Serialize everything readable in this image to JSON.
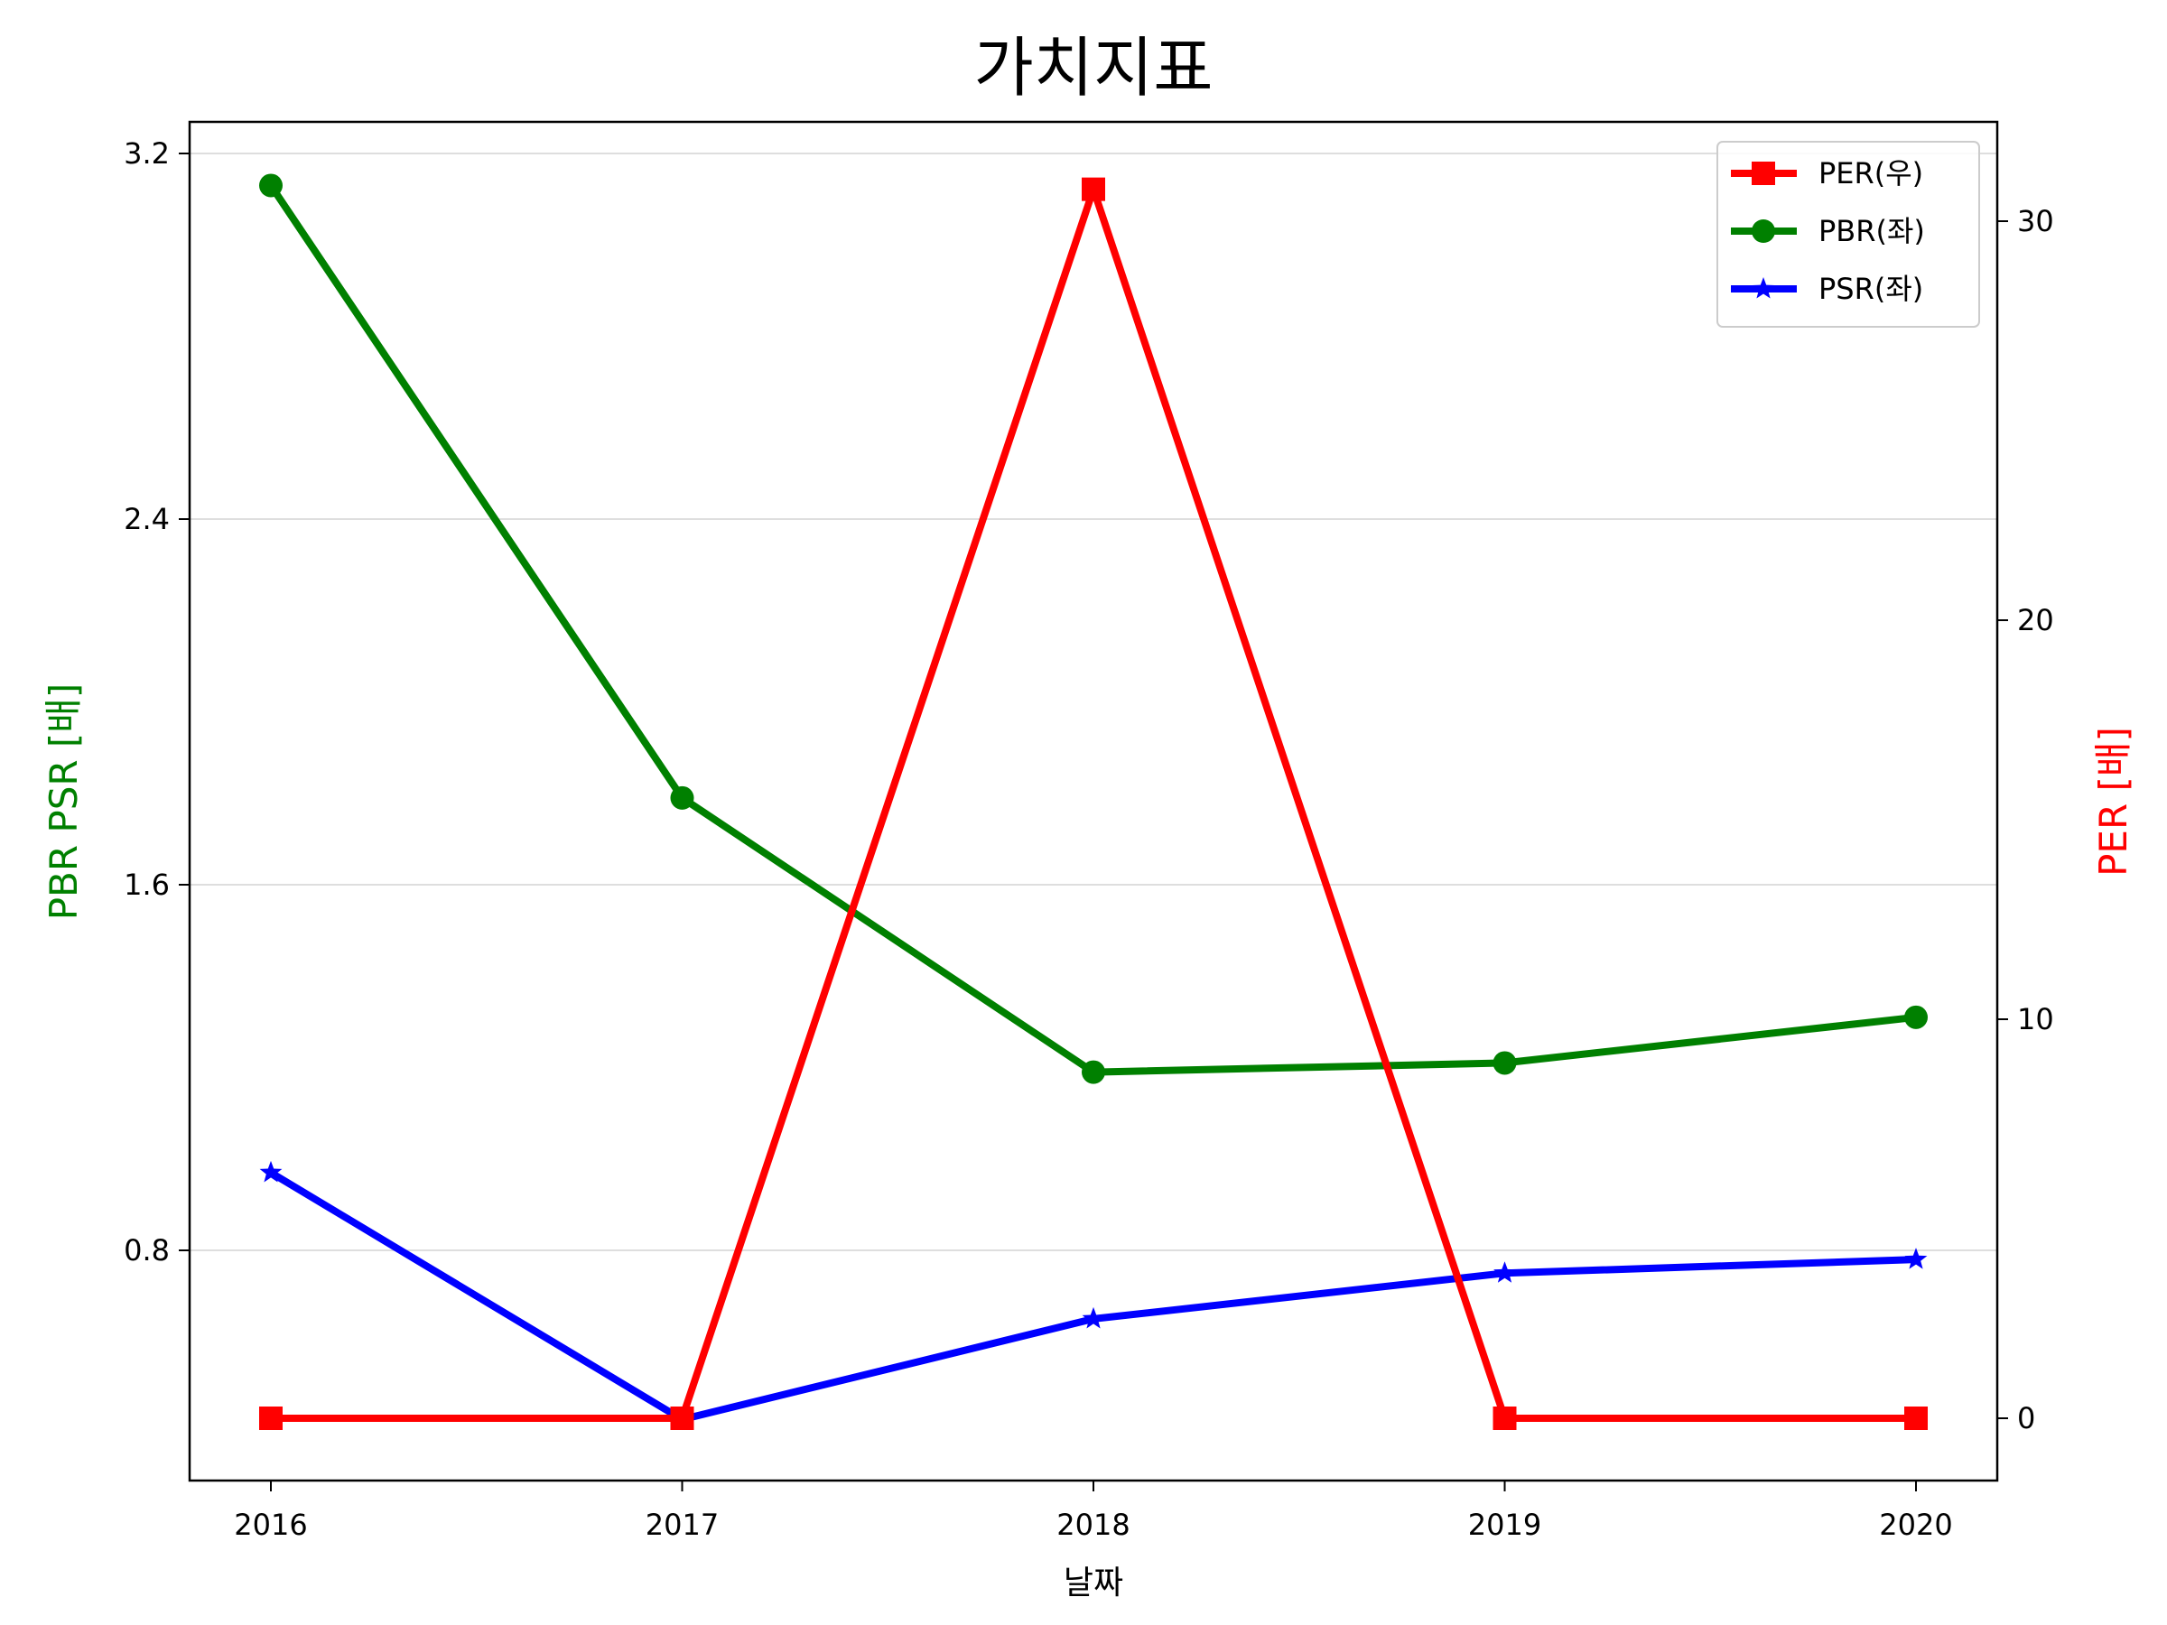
{
  "chart_data": {
    "type": "line",
    "title": "가치지표",
    "xlabel": "날짜",
    "ylabel_left": "PBR PSR [배]",
    "ylabel_right": "PER [배]",
    "categories": [
      "2016",
      "2017",
      "2018",
      "2019",
      "2020"
    ],
    "left_axis": {
      "ticks": [
        "0.8",
        "1.6",
        "2.4",
        "3.2"
      ],
      "ylim": [
        0.3,
        3.2
      ]
    },
    "right_axis": {
      "ticks": [
        "0",
        "10",
        "20",
        "30"
      ],
      "ylim": [
        -1.6,
        32.3
      ]
    },
    "series": [
      {
        "name": "PER(우)",
        "axis": "right",
        "color": "#ff0000",
        "marker": "square",
        "values": [
          0,
          0,
          30.8,
          0,
          0
        ]
      },
      {
        "name": "PBR(좌)",
        "axis": "left",
        "color": "#008000",
        "marker": "circle",
        "values": [
          3.13,
          1.79,
          1.19,
          1.21,
          1.31
        ]
      },
      {
        "name": "PSR(좌)",
        "axis": "left",
        "color": "#0000ff",
        "marker": "star",
        "values": [
          0.97,
          0.43,
          0.65,
          0.75,
          0.78
        ]
      }
    ],
    "grid": "horizontal",
    "legend_position": "top-right",
    "label_colors": {
      "left": "#008000",
      "right": "#ff0000"
    }
  }
}
